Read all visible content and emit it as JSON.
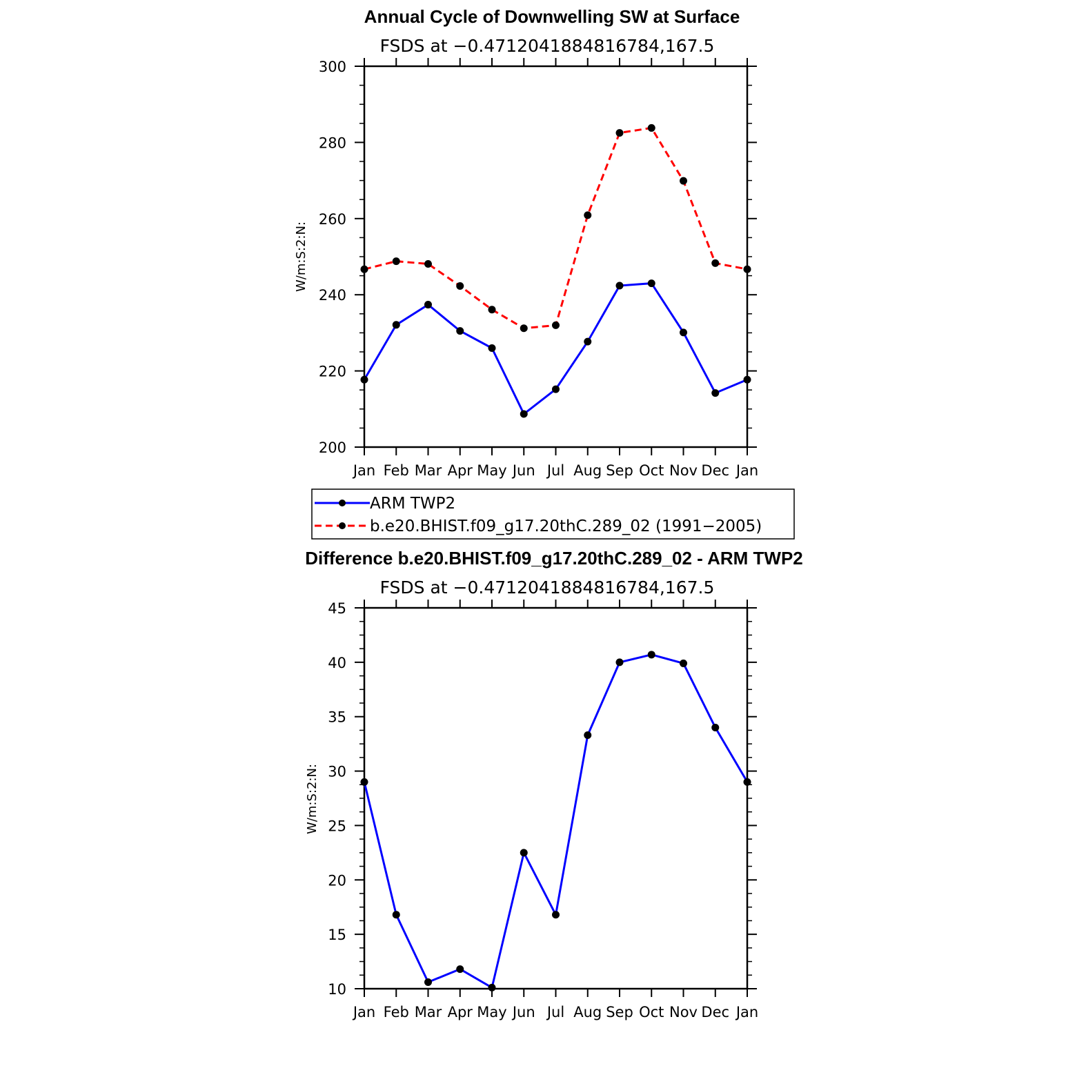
{
  "colors": {
    "series_obs": "#0000ff",
    "series_model": "#ff0000",
    "marker": "#000000",
    "axes": "#000000"
  },
  "chart_data": [
    {
      "type": "line",
      "title": "Annual Cycle of Downwelling SW at Surface",
      "subtitle": "FSDS at −0.4712041884816784,167.5",
      "xlabel": "",
      "ylabel": "W/m:S:2:N:",
      "categories": [
        "Jan",
        "Feb",
        "Mar",
        "Apr",
        "May",
        "Jun",
        "Jul",
        "Aug",
        "Sep",
        "Oct",
        "Nov",
        "Dec",
        "Jan"
      ],
      "ylim": [
        200,
        300
      ],
      "yticks": [
        200,
        220,
        240,
        260,
        280,
        300
      ],
      "series": [
        {
          "name": "ARM TWP2",
          "line_style": "solid",
          "color": "#0000ff",
          "values": [
            217.7,
            232.1,
            237.4,
            230.5,
            226.0,
            208.7,
            215.2,
            227.7,
            242.4,
            243.0,
            230.1,
            214.2,
            217.7
          ]
        },
        {
          "name": "b.e20.BHIST.f09_g17.20thC.289_02 (1991−2005)",
          "line_style": "dashed",
          "color": "#ff0000",
          "values": [
            246.7,
            248.8,
            248.1,
            242.3,
            236.1,
            231.2,
            232.0,
            260.9,
            282.5,
            283.8,
            269.9,
            248.3,
            246.7
          ]
        }
      ],
      "legend": {
        "placement": "below",
        "entries": [
          "ARM TWP2",
          "b.e20.BHIST.f09_g17.20thC.289_02 (1991−2005)"
        ]
      },
      "grid": false
    },
    {
      "type": "line",
      "title": "Difference b.e20.BHIST.f09_g17.20thC.289_02 - ARM TWP2",
      "subtitle": "FSDS at −0.4712041884816784,167.5",
      "xlabel": "",
      "ylabel": "W/m:S:2:N:",
      "categories": [
        "Jan",
        "Feb",
        "Mar",
        "Apr",
        "May",
        "Jun",
        "Jul",
        "Aug",
        "Sep",
        "Oct",
        "Nov",
        "Dec",
        "Jan"
      ],
      "ylim": [
        10,
        45
      ],
      "yticks": [
        10,
        15,
        20,
        25,
        30,
        35,
        40,
        45
      ],
      "series": [
        {
          "line_style": "solid",
          "color": "#0000ff",
          "values": [
            29.0,
            16.8,
            10.6,
            11.8,
            10.1,
            22.5,
            16.8,
            33.3,
            40.0,
            40.7,
            39.9,
            34.0,
            29.0
          ]
        }
      ],
      "grid": false
    }
  ]
}
